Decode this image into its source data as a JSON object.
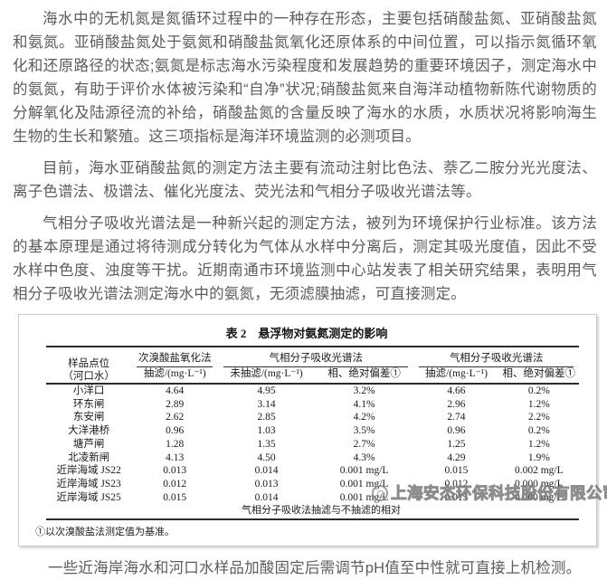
{
  "document": {
    "paragraphs": [
      "海水中的无机氮是氮循环过程中的一种存在形态，主要包括硝酸盐氮、亚硝酸盐氮和氨氮。亚硝酸盐氮处于氨氮和硝酸盐氮氧化还原体系的中间位置，可以指示氮循环氧化和还原路径的状态;氨氮是标志海水污染程度和发展趋势的重要环境因子，测定海水中的氨氮，有助于评价水体被污染和“自净”状况;硝酸盐氮来自海洋动植物新陈代谢物质的分解氧化及陆源径流的补给，硝酸盐氮的含量反映了海水的水质，水质状况将影响海生生物的生长和繁殖。这三项指标是海洋环境监测的必测项目。",
      "目前，海水亚硝酸盐氮的测定方法主要有流动注射比色法、萘乙二胺分光光度法、离子色谱法、极谱法、催化光度法、荧光法和气相分子吸收光谱法等。",
      "气相分子吸收光谱法是一种新兴起的测定方法，被列为环境保护行业标准。该方法的基本原理是通过将待测成分转化为气体从水样中分离后，测定其吸光度值，因此不受水样中色度、浊度等干扰。近期南通市环境监测中心站发表了相关研究结果，表明用气相分子吸收光谱法测定海水中的氨氮，无须滤膜抽滤，可直接测定。"
    ],
    "closing": "一些近海岸海水和河口水样品加酸固定后需调节pH值至中性就可直接上机检测。"
  },
  "table": {
    "title": "表 2　悬浮物对氨氮测定的影响",
    "header": {
      "sample_line1": "样品点位",
      "sample_line2": "（河口水）",
      "group1": "次溴酸盐氧化法",
      "group2": "气相分子吸收光谱法",
      "group3": "气相分子吸收光谱法",
      "sub1": "抽滤/(mg·L⁻¹)",
      "sub2": "未抽滤/(mg·L⁻¹)",
      "sub3": "相、绝对偏差①",
      "sub4": "抽滤/(mg·L⁻¹)",
      "sub5": "相、绝对偏差①"
    },
    "rows": [
      {
        "site": "小洋口",
        "c1": "4.64",
        "c2": "4.95",
        "c3": "3.2%",
        "c4": "4.66",
        "c5": "0.2%"
      },
      {
        "site": "环东闸",
        "c1": "2.89",
        "c2": "3.14",
        "c3": "4.1%",
        "c4": "2.96",
        "c5": "1.2%"
      },
      {
        "site": "东安闸",
        "c1": "2.62",
        "c2": "2.85",
        "c3": "4.2%",
        "c4": "2.74",
        "c5": "2.2%"
      },
      {
        "site": "大洋港桥",
        "c1": "0.96",
        "c2": "1.03",
        "c3": "3.5%",
        "c4": "0.96",
        "c5": "0.2%"
      },
      {
        "site": "塘芦闸",
        "c1": "1.28",
        "c2": "1.35",
        "c3": "2.7%",
        "c4": "1.25",
        "c5": "1.2%"
      },
      {
        "site": "北凌新闸",
        "c1": "4.13",
        "c2": "4.50",
        "c3": "4.3%",
        "c4": "4.29",
        "c5": "1.9%"
      },
      {
        "site": "近岸海域 JS22",
        "c1": "0.013",
        "c2": "0.014",
        "c3": "0.001 mg/L",
        "c4": "0.015",
        "c5": "0.002 mg/L"
      },
      {
        "site": "近岸海域 JS23",
        "c1": "0.012",
        "c2": "0.013",
        "c3": "0.001 mg/L",
        "c4": "0.012",
        "c5": "0.000 mg/L"
      },
      {
        "site": "近岸海域 JS25",
        "c1": "0.015",
        "c2": "0.014",
        "c3": "0.001 mg/L",
        "c4": "0.015",
        "c5": "0.000 mg/L"
      }
    ],
    "note": "气相分子吸收法抽滤与不抽滤的相对",
    "footnote": "①以次溴酸盐法测定值为基准。"
  },
  "watermark": {
    "company": "上海安杰环保科技股份有限公司"
  },
  "colors": {
    "body_text": "#5c5c5e",
    "table_text": "#1a1a1a",
    "rule": "#2b2b2b",
    "box_border": "#c9c9c9",
    "watermark": "#8a8a8a"
  }
}
